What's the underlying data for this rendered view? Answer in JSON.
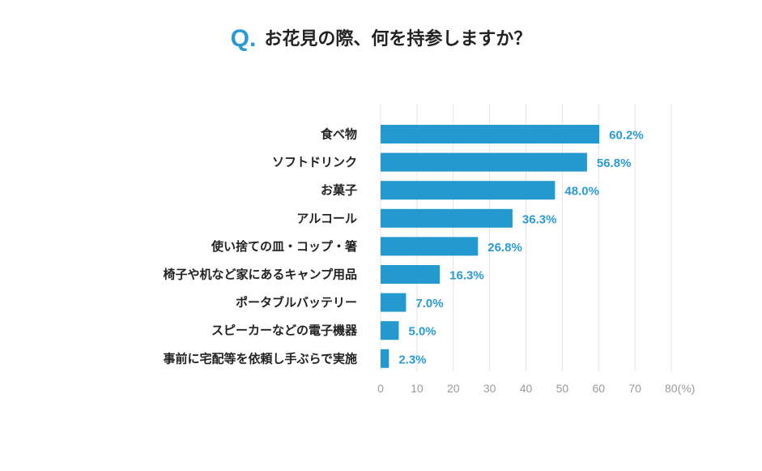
{
  "title": {
    "q_label": "Q.",
    "text": "お花見の際、何を持参しますか？"
  },
  "chart_data": {
    "type": "bar",
    "orientation": "horizontal",
    "title": "お花見の際、何を持参しますか？",
    "categories": [
      "食べ物",
      "ソフトドリンク",
      "お菓子",
      "アルコール",
      "使い捨ての皿・コップ・箸",
      "椅子や机など家にあるキャンプ用品",
      "ポータブルバッテリー",
      "スピーカーなどの電子機器",
      "事前に宅配等を依頼し手ぶらで実施"
    ],
    "values": [
      60.2,
      56.8,
      48.0,
      36.3,
      26.8,
      16.3,
      7.0,
      5.0,
      2.3
    ],
    "value_labels": [
      "60.2%",
      "56.8%",
      "48.0%",
      "36.3%",
      "26.8%",
      "16.3%",
      "7.0%",
      "5.0%",
      "2.3%"
    ],
    "xlim": [
      0,
      80
    ],
    "xticks": [
      0,
      10,
      20,
      30,
      40,
      50,
      60,
      70,
      80
    ],
    "xtick_labels": [
      "0",
      "10",
      "20",
      "30",
      "40",
      "50",
      "60",
      "70",
      "80(%)"
    ],
    "grid": true,
    "bar_color": "#2399d0",
    "label_color": "#2a9bd2",
    "grid_color": "#e4e4e4"
  }
}
